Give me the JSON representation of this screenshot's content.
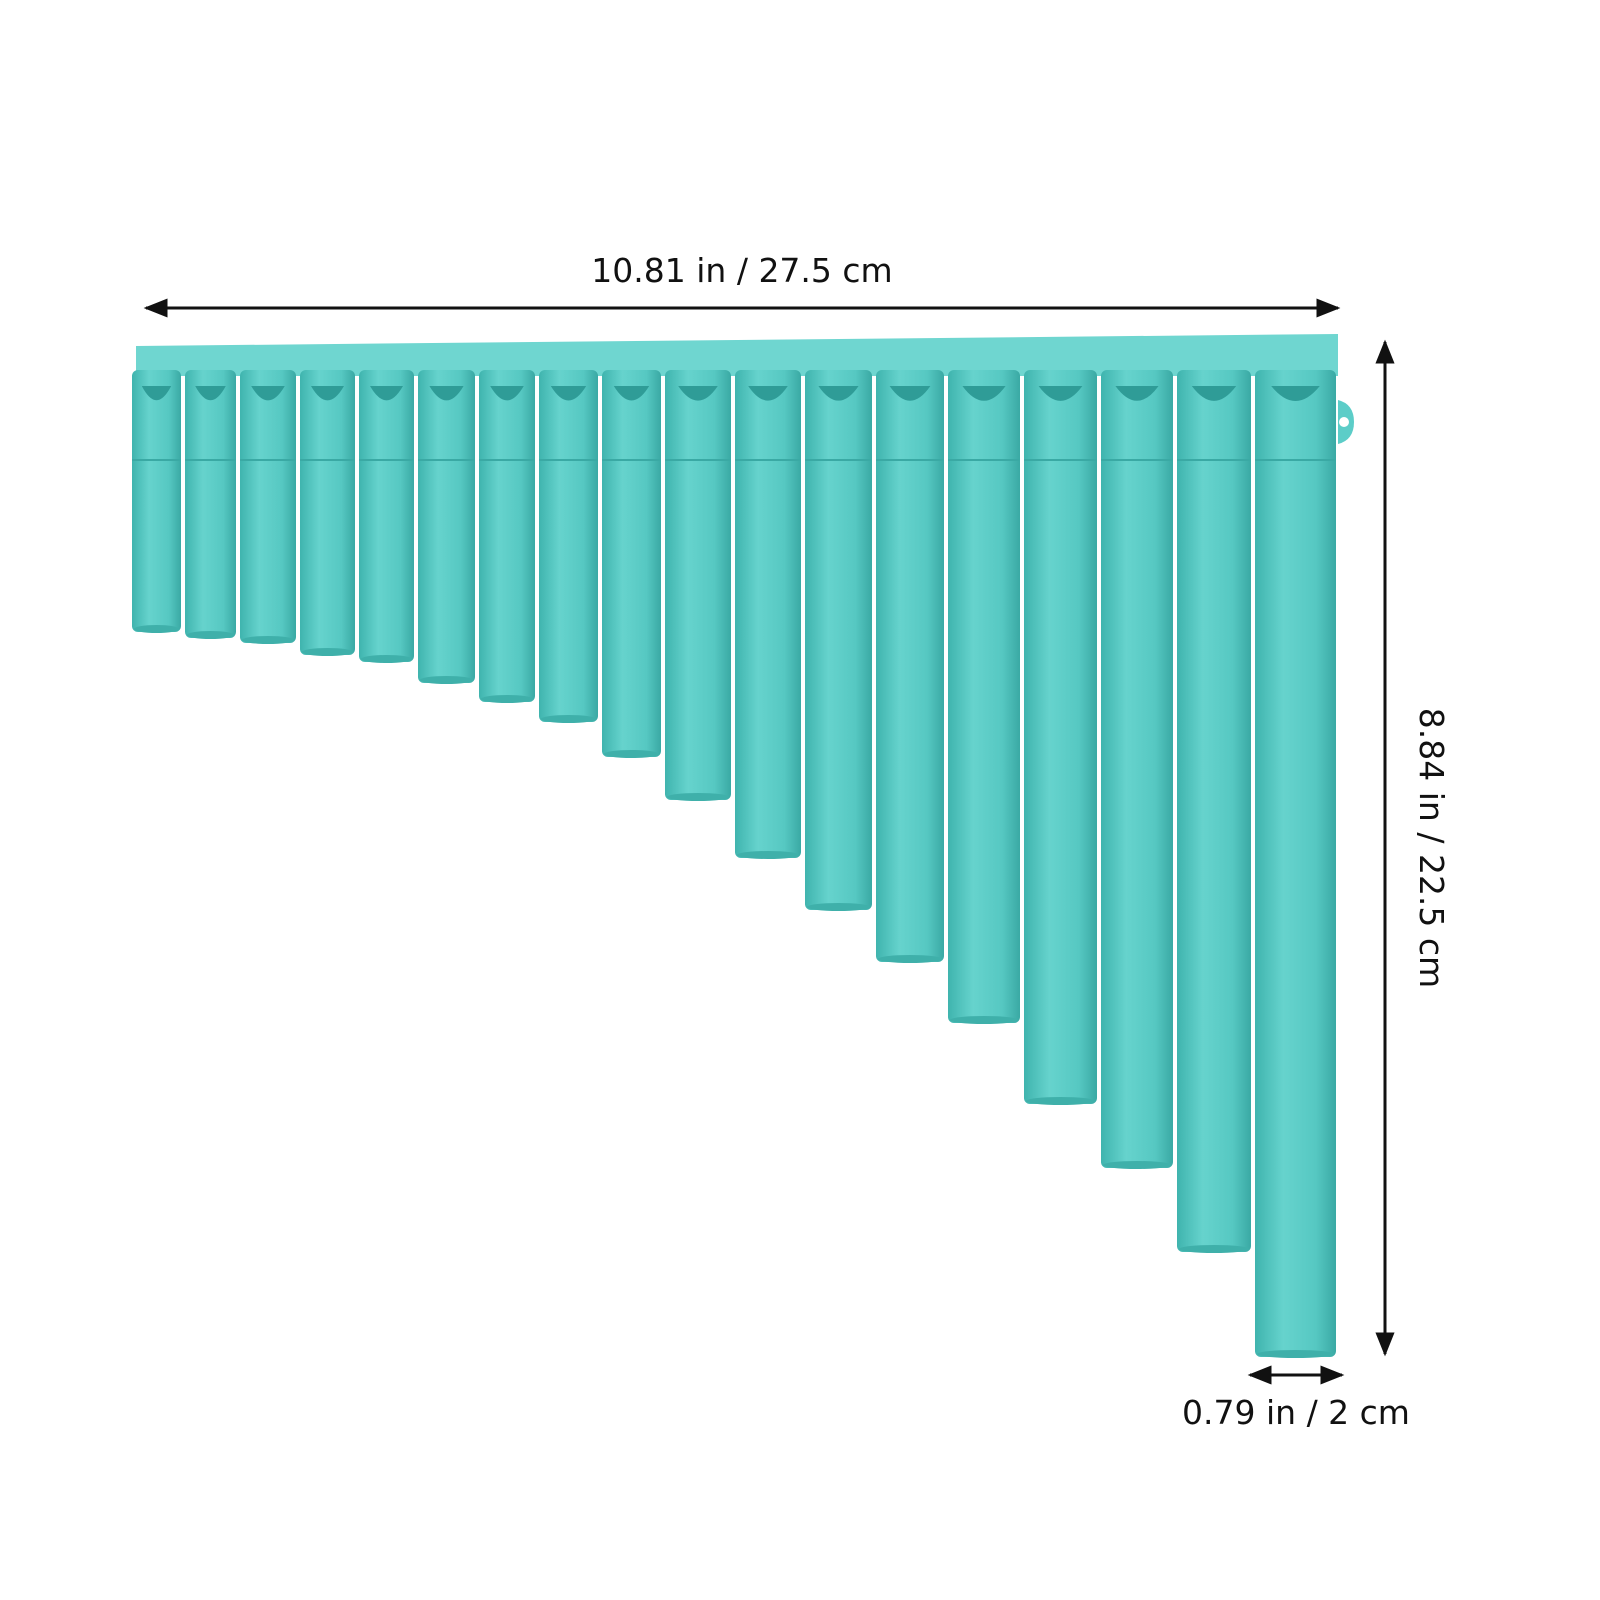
{
  "dimensions": {
    "width_label": "10.81 in / 27.5 cm",
    "height_label": "8.84 in / 22.5 cm",
    "pipe_label": "0.79 in / 2 cm"
  }
}
